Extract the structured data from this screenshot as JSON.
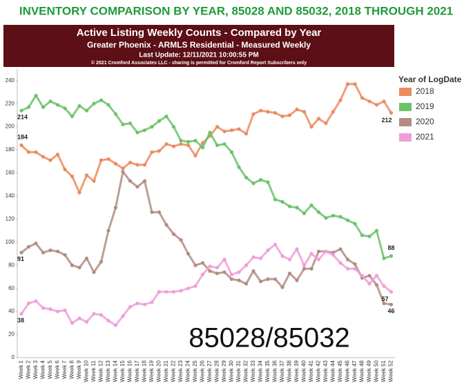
{
  "chart_data": {
    "type": "line",
    "heading": "INVENTORY COMPARISON BY YEAR, 85028 AND 85032, 2018 THROUGH 2021",
    "title": "Active Listing Weekly Counts - Compared by Year",
    "subtitle": "Greater Phoenix - ARMLS Residential - Measured Weekly",
    "update_note": "Last Update: 12/11/2021 10:00:55 PM",
    "copyright": "© 2021 Cromford Associates LLC - sharing is permitted for Cromford Report Subscribers only",
    "legend_title": "Year of LogDate",
    "watermark": "85028/85032",
    "categories": [
      "Week 1",
      "Week 2",
      "Week 3",
      "Week 4",
      "Week 5",
      "Week 6",
      "Week 7",
      "Week 8",
      "Week 9",
      "Week 10",
      "Week 11",
      "Week 12",
      "Week 13",
      "Week 14",
      "Week 15",
      "Week 16",
      "Week 17",
      "Week 18",
      "Week 19",
      "Week 20",
      "Week 21",
      "Week 22",
      "Week 23",
      "Week 24",
      "Week 25",
      "Week 26",
      "Week 27",
      "Week 28",
      "Week 29",
      "Week 30",
      "Week 31",
      "Week 32",
      "Week 33",
      "Week 34",
      "Week 35",
      "Week 36",
      "Week 37",
      "Week 38",
      "Week 39",
      "Week 40",
      "Week 41",
      "Week 42",
      "Week 43",
      "Week 44",
      "Week 45",
      "Week 46",
      "Week 47",
      "Week 48",
      "Week 49",
      "Week 50",
      "Week 51",
      "Week 52"
    ],
    "series": [
      {
        "name": "2018",
        "color": "#ec8b5e",
        "values": [
          184,
          178,
          178,
          174,
          171,
          176,
          163,
          157,
          143,
          158,
          153,
          171,
          172,
          168,
          164,
          169,
          167,
          167,
          178,
          179,
          185,
          183,
          185,
          184,
          175,
          186,
          192,
          200,
          196,
          197,
          198,
          194,
          211,
          214,
          213,
          212,
          209,
          210,
          215,
          213,
          200,
          207,
          203,
          213,
          223,
          237,
          237,
          225,
          222,
          219,
          222,
          212
        ]
      },
      {
        "name": "2019",
        "color": "#6cc26c",
        "values": [
          214,
          217,
          227,
          217,
          222,
          219,
          216,
          209,
          218,
          214,
          220,
          223,
          219,
          211,
          202,
          203,
          195,
          197,
          200,
          205,
          209,
          200,
          188,
          187,
          188,
          182,
          195,
          184,
          185,
          178,
          165,
          156,
          151,
          154,
          152,
          137,
          135,
          131,
          130,
          125,
          132,
          126,
          121,
          123,
          122,
          119,
          116,
          106,
          105,
          110,
          86,
          88
        ]
      },
      {
        "name": "2020",
        "color": "#b38c82",
        "values": [
          91,
          96,
          99,
          91,
          93,
          92,
          89,
          80,
          78,
          86,
          74,
          83,
          110,
          130,
          161,
          153,
          148,
          153,
          126,
          126,
          115,
          107,
          102,
          90,
          80,
          82,
          75,
          73,
          74,
          68,
          67,
          64,
          75,
          66,
          68,
          68,
          61,
          73,
          67,
          77,
          77,
          92,
          92,
          91,
          94,
          85,
          81,
          69,
          71,
          63,
          47,
          46
        ]
      },
      {
        "name": "2021",
        "color": "#ee9fd9",
        "values": [
          38,
          47,
          49,
          43,
          42,
          40,
          41,
          30,
          34,
          31,
          38,
          37,
          32,
          28,
          36,
          44,
          47,
          46,
          48,
          57,
          57,
          57,
          58,
          60,
          62,
          72,
          79,
          78,
          85,
          72,
          74,
          80,
          87,
          86,
          93,
          98,
          88,
          85,
          94,
          80,
          90,
          85,
          92,
          89,
          82,
          77,
          77,
          71,
          64,
          71,
          62,
          57
        ]
      }
    ],
    "ylim": [
      0,
      250
    ],
    "yticks": [
      0,
      20,
      40,
      60,
      80,
      100,
      120,
      140,
      160,
      180,
      200,
      220,
      240
    ],
    "grid": false
  }
}
